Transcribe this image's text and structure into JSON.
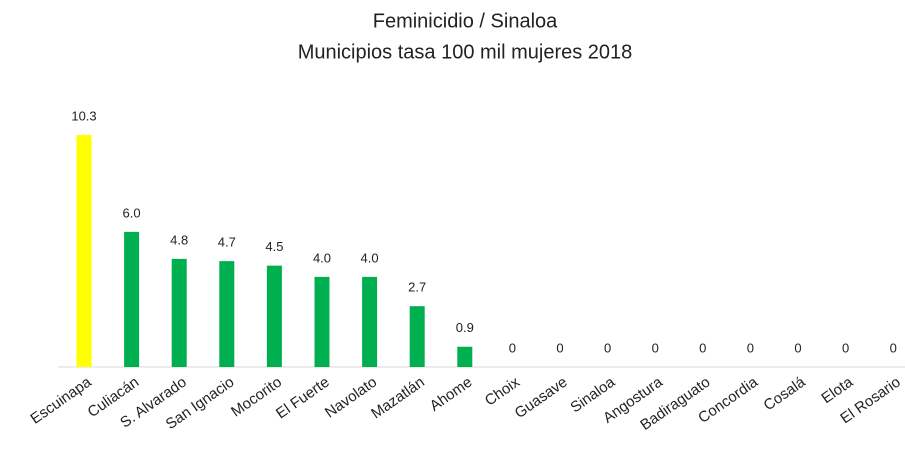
{
  "chart_data": {
    "type": "bar",
    "title": "Feminicidio / Sinaloa",
    "subtitle": "Municipios tasa 100 mil mujeres 2018",
    "categories": [
      "Escuinapa",
      "Culiacán",
      "S. Alvarado",
      "San Ignacio",
      "Mocorito",
      "El Fuerte",
      "Navolato",
      "Mazatlán",
      "Ahome",
      "Choix",
      "Guasave",
      "Sinaloa",
      "Angostura",
      "Badiraguato",
      "Concordia",
      "Cosalá",
      "Elota",
      "El Rosario"
    ],
    "values": [
      10.3,
      6.0,
      4.8,
      4.7,
      4.5,
      4.0,
      4.0,
      2.7,
      0.9,
      0,
      0,
      0,
      0,
      0,
      0,
      0,
      0,
      0
    ],
    "value_labels": [
      "10.3",
      "6.0",
      "4.8",
      "4.7",
      "4.5",
      "4.0",
      "4.0",
      "2.7",
      "0.9",
      "0",
      "0",
      "0",
      "0",
      "0",
      "0",
      "0",
      "0",
      "0"
    ],
    "colors": [
      "#ffff00",
      "#00b050",
      "#00b050",
      "#00b050",
      "#00b050",
      "#00b050",
      "#00b050",
      "#00b050",
      "#00b050",
      "#00b050",
      "#00b050",
      "#00b050",
      "#00b050",
      "#00b050",
      "#00b050",
      "#00b050",
      "#00b050",
      "#00b050"
    ]
  }
}
